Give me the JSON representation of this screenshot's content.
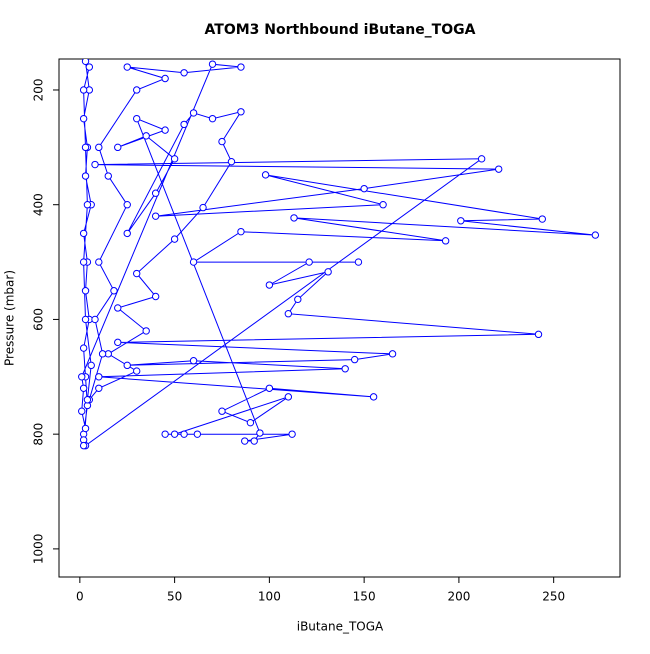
{
  "chart_data": {
    "type": "line",
    "title": "ATOM3 Northbound iButane_TOGA",
    "xlabel": "iButane_TOGA",
    "ylabel": "Pressure (mbar)",
    "xlim": [
      -11,
      285
    ],
    "ylim": [
      1049,
      146
    ],
    "xticks": [
      0,
      50,
      100,
      150,
      200,
      250
    ],
    "yticks": [
      200,
      400,
      600,
      800,
      1000
    ],
    "series": [
      {
        "color": "#0000ff",
        "x": [
          3,
          5,
          2,
          4,
          3,
          6,
          2,
          4,
          3,
          5,
          2,
          3,
          4,
          2,
          3,
          212,
          8,
          221,
          150,
          40,
          160,
          98,
          244,
          201,
          272,
          113,
          193,
          85,
          60,
          147,
          121,
          100,
          131,
          115,
          110,
          242,
          20,
          165,
          145,
          25,
          60,
          140,
          10,
          155,
          100,
          75,
          90,
          110,
          50,
          45,
          55,
          62,
          112,
          87,
          92,
          95,
          30,
          45,
          20,
          35,
          50,
          40,
          25,
          55,
          60,
          70,
          85,
          75,
          80,
          65,
          50,
          30,
          40,
          20,
          35,
          15,
          30,
          10,
          5,
          12,
          8,
          18,
          10,
          25,
          15,
          10,
          30,
          45,
          25,
          55,
          85,
          70,
          1,
          2,
          1,
          3,
          2,
          2,
          4,
          6,
          3,
          2,
          4,
          3,
          2,
          5
        ],
        "values": [
          150,
          200,
          250,
          300,
          350,
          400,
          450,
          500,
          550,
          600,
          650,
          700,
          750,
          800,
          820,
          320,
          330,
          338,
          372,
          420,
          400,
          348,
          425,
          428,
          453,
          423,
          463,
          447,
          500,
          500,
          500,
          540,
          517,
          565,
          590,
          626,
          640,
          660,
          670,
          680,
          672,
          686,
          700,
          735,
          720,
          760,
          780,
          735,
          800,
          800,
          800,
          800,
          800,
          812,
          812,
          798,
          250,
          270,
          300,
          280,
          320,
          380,
          450,
          260,
          240,
          250,
          238,
          290,
          325,
          405,
          460,
          520,
          560,
          580,
          620,
          660,
          690,
          720,
          740,
          660,
          600,
          550,
          500,
          400,
          350,
          300,
          200,
          180,
          160,
          170,
          160,
          155,
          700,
          720,
          760,
          790,
          810,
          820,
          740,
          680,
          600,
          500,
          400,
          300,
          200,
          160
        ]
      }
    ]
  }
}
